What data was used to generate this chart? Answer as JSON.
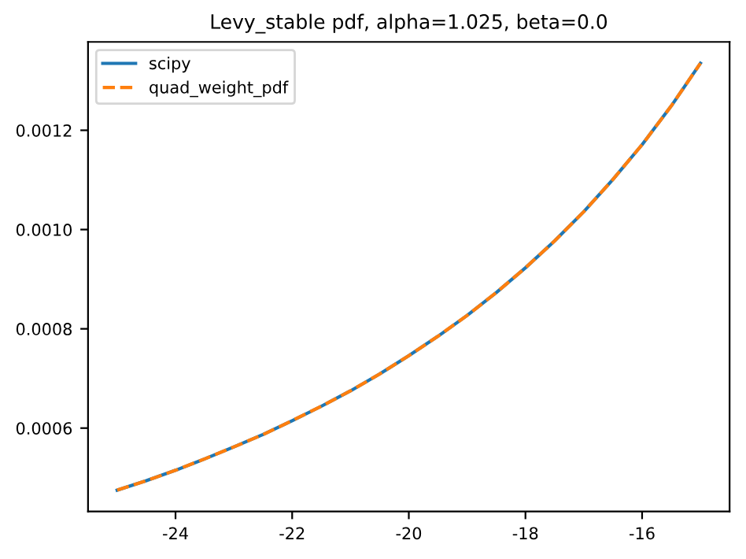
{
  "chart_data": {
    "type": "line",
    "title": "Levy_stable pdf, alpha=1.025, beta=0.0",
    "x": [
      -25,
      -24.5,
      -24,
      -23.5,
      -23,
      -22.5,
      -22,
      -21.5,
      -21,
      -20.5,
      -20,
      -19.5,
      -19,
      -18.5,
      -18,
      -17.5,
      -17,
      -16.5,
      -16,
      -15.5,
      -15
    ],
    "series": [
      {
        "name": "scipy",
        "color": "#1f77b4",
        "line_style": "solid",
        "values": [
          0.000475,
          0.000494,
          0.000515,
          0.000538,
          0.000562,
          0.000587,
          0.000615,
          0.000644,
          0.000675,
          0.000709,
          0.000746,
          0.000785,
          0.000827,
          0.000873,
          0.000923,
          0.000977,
          0.001036,
          0.001101,
          0.001171,
          0.001249,
          0.001335
        ]
      },
      {
        "name": "quad_weight_pdf",
        "color": "#ff7f0e",
        "line_style": "dashed",
        "values": [
          0.000475,
          0.000494,
          0.000515,
          0.000538,
          0.000562,
          0.000587,
          0.000615,
          0.000644,
          0.000675,
          0.000709,
          0.000746,
          0.000785,
          0.000827,
          0.000873,
          0.000923,
          0.000977,
          0.001036,
          0.001101,
          0.001171,
          0.001249,
          0.001335
        ]
      }
    ],
    "xlim": [
      -25.5,
      -14.5
    ],
    "xticks": [
      -24,
      -22,
      -20,
      -18,
      -16
    ],
    "ylim": [
      0.000432,
      0.001378
    ],
    "yticks": [
      {
        "value": 0.0006,
        "label": "0.0006"
      },
      {
        "value": 0.0008,
        "label": "0.0008"
      },
      {
        "value": 0.001,
        "label": "0.0010"
      },
      {
        "value": 0.0012,
        "label": "0.0012"
      }
    ],
    "legend": "top left",
    "grid": false,
    "marker": "none"
  }
}
